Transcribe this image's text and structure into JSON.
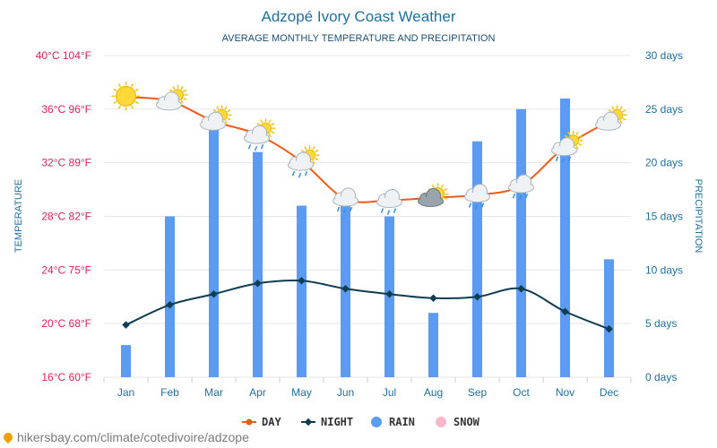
{
  "colors": {
    "day": "#f05a14",
    "night": "#0f3d52",
    "rain": "#5b9cf2",
    "snow": "#ffb6c8",
    "title": "#1f6f9f",
    "left_axis": "#e0205a",
    "right_axis": "#1f6f9f",
    "month_axis": "#1f6f9f",
    "grid": "#e6e6e6"
  },
  "chart_data": {
    "type": "bar+line",
    "title": "Adzopé Ivory Coast Weather",
    "subtitle": "AVERAGE MONTHLY TEMPERATURE AND PRECIPITATION",
    "ylabel_left": "TEMPERATURE",
    "ylabel_right": "PRECIPITATION",
    "categories": [
      "Jan",
      "Feb",
      "Mar",
      "Apr",
      "May",
      "Jun",
      "Jul",
      "Aug",
      "Sep",
      "Oct",
      "Nov",
      "Dec"
    ],
    "ylim_left": [
      16,
      40
    ],
    "ylim_right": [
      0,
      30
    ],
    "left_ticks": [
      {
        "value": 16,
        "label": "16°C 60°F"
      },
      {
        "value": 20,
        "label": "20°C 68°F"
      },
      {
        "value": 24,
        "label": "24°C 75°F"
      },
      {
        "value": 28,
        "label": "28°C 82°F"
      },
      {
        "value": 32,
        "label": "32°C 89°F"
      },
      {
        "value": 36,
        "label": "36°C 96°F"
      },
      {
        "value": 40,
        "label": "40°C 104°F"
      }
    ],
    "right_ticks": [
      {
        "value": 0,
        "label": "0 days"
      },
      {
        "value": 5,
        "label": "5 days"
      },
      {
        "value": 10,
        "label": "10 days"
      },
      {
        "value": 15,
        "label": "15 days"
      },
      {
        "value": 20,
        "label": "20 days"
      },
      {
        "value": 25,
        "label": "25 days"
      },
      {
        "value": 30,
        "label": "30 days"
      }
    ],
    "series": [
      {
        "name": "DAY",
        "type": "line",
        "axis": "left",
        "values": [
          36.9,
          36.6,
          35.1,
          34.1,
          32.1,
          29.3,
          29.2,
          29.4,
          29.6,
          30.3,
          33.2,
          35.1
        ]
      },
      {
        "name": "NIGHT",
        "type": "line",
        "axis": "left",
        "values": [
          19.9,
          21.4,
          22.2,
          23.0,
          23.2,
          22.6,
          22.2,
          21.9,
          22.0,
          22.6,
          20.9,
          19.6
        ]
      },
      {
        "name": "RAIN",
        "type": "bar",
        "axis": "right",
        "values": [
          3,
          15,
          24,
          21,
          16,
          17,
          15,
          6,
          22,
          25,
          26,
          11
        ]
      },
      {
        "name": "SNOW",
        "type": "bar",
        "axis": "right",
        "values": [
          0,
          0,
          0,
          0,
          0,
          0,
          0,
          0,
          0,
          0,
          0,
          0
        ]
      }
    ],
    "weather_icons": [
      "sunny-icon",
      "partly-cloudy-icon",
      "partly-cloudy-icon",
      "partly-cloudy-rain-icon",
      "partly-cloudy-rain-icon",
      "rain-cloud-icon",
      "rain-cloud-icon",
      "sun-behind-cloud-icon",
      "rain-cloud-icon",
      "rain-cloud-icon",
      "partly-cloudy-rain-icon",
      "partly-cloudy-icon"
    ],
    "legend": [
      {
        "label": "DAY",
        "type": "line-dot",
        "color_key": "day"
      },
      {
        "label": "NIGHT",
        "type": "line-diamond",
        "color_key": "night"
      },
      {
        "label": "RAIN",
        "type": "dot",
        "color_key": "rain"
      },
      {
        "label": "SNOW",
        "type": "dot",
        "color_key": "snow"
      }
    ]
  },
  "credit": {
    "text": "hikersbay.com/climate/cotedivoire/adzope"
  }
}
